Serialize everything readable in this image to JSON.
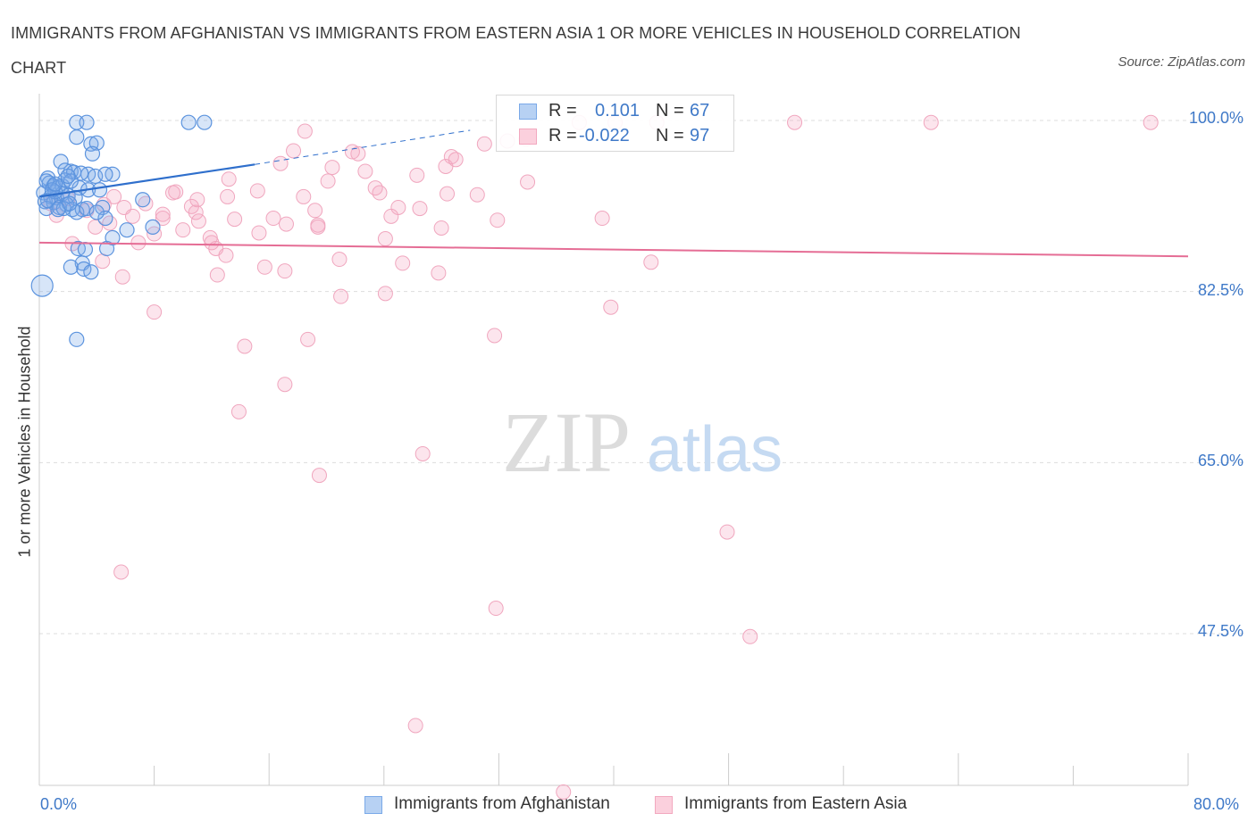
{
  "title": "IMMIGRANTS FROM AFGHANISTAN VS IMMIGRANTS FROM EASTERN ASIA 1 OR MORE VEHICLES IN HOUSEHOLD CORRELATION CHART",
  "source": "Source: ZipAtlas.com",
  "watermark": {
    "zip": "ZIP",
    "atlas": "atlas"
  },
  "legend_stats": [
    {
      "r_label": "R =",
      "r_value": "0.101",
      "n_label": "N =",
      "n_value": "67",
      "color": "#7aa9e8"
    },
    {
      "r_label": "R =",
      "r_value": "-0.022",
      "n_label": "N =",
      "n_value": "97",
      "color": "#f2a8bf"
    }
  ],
  "legend": [
    {
      "label": "Immigrants from Afghanistan",
      "color": "#7aa9e8"
    },
    {
      "label": "Immigrants from Eastern Asia",
      "color": "#f2a8bf"
    }
  ],
  "chart_data": {
    "type": "scatter",
    "title": "IMMIGRANTS FROM AFGHANISTAN VS IMMIGRANTS FROM EASTERN ASIA 1 OR MORE VEHICLES IN HOUSEHOLD CORRELATION CHART",
    "xlabel": "",
    "ylabel": "1 or more Vehicles in Household",
    "xlim": [
      0,
      80
    ],
    "ylim": [
      32,
      103
    ],
    "x_tick_labels": [
      "0.0%",
      "80.0%"
    ],
    "y_ticks": [
      47.5,
      65.0,
      82.5,
      100.0
    ],
    "y_tick_labels": [
      "47.5%",
      "65.0%",
      "82.5%",
      "100.0%"
    ],
    "grid": "horizontal dashed",
    "series": [
      {
        "name": "Immigrants from Afghanistan",
        "color": "#5b93de",
        "trend": {
          "x": [
            0,
            15
          ],
          "y": [
            92.2,
            95.5
          ],
          "extended_to": [
            30,
            99.0
          ]
        },
        "points": [
          [
            2.6,
            99.8
          ],
          [
            2.6,
            98.3
          ],
          [
            3.3,
            99.8
          ],
          [
            10.4,
            99.8
          ],
          [
            11.5,
            99.8
          ],
          [
            3.6,
            97.6
          ],
          [
            4.0,
            97.7
          ],
          [
            3.7,
            96.6
          ],
          [
            1.5,
            95.8
          ],
          [
            2.2,
            94.8
          ],
          [
            1.8,
            94.9
          ],
          [
            2.4,
            94.7
          ],
          [
            3.4,
            94.5
          ],
          [
            3.9,
            94.3
          ],
          [
            5.1,
            94.5
          ],
          [
            0.6,
            94.1
          ],
          [
            0.7,
            93.6
          ],
          [
            1.0,
            93.3
          ],
          [
            1.3,
            93.1
          ],
          [
            1.6,
            93.3
          ],
          [
            2.8,
            93.1
          ],
          [
            3.4,
            92.9
          ],
          [
            4.2,
            92.9
          ],
          [
            0.3,
            92.6
          ],
          [
            0.8,
            92.2
          ],
          [
            1.2,
            92.1
          ],
          [
            1.6,
            92.5
          ],
          [
            2.0,
            92.3
          ],
          [
            2.5,
            92.1
          ],
          [
            0.4,
            91.7
          ],
          [
            1.0,
            91.6
          ],
          [
            1.9,
            91.4
          ],
          [
            0.5,
            91.0
          ],
          [
            1.4,
            91.1
          ],
          [
            2.3,
            90.9
          ],
          [
            3.0,
            90.9
          ],
          [
            4.4,
            91.1
          ],
          [
            2.6,
            90.6
          ],
          [
            4.6,
            90.0
          ],
          [
            7.2,
            91.9
          ],
          [
            7.9,
            89.1
          ],
          [
            6.1,
            88.8
          ],
          [
            4.7,
            86.9
          ],
          [
            2.7,
            86.9
          ],
          [
            3.2,
            86.8
          ],
          [
            3.0,
            85.4
          ],
          [
            2.2,
            85.0
          ],
          [
            3.1,
            84.8
          ],
          [
            3.6,
            84.5
          ],
          [
            0.2,
            83.1
          ],
          [
            2.6,
            77.6
          ],
          [
            0.5,
            93.8
          ],
          [
            1.1,
            92.7
          ],
          [
            1.8,
            93.9
          ],
          [
            2.9,
            94.6
          ],
          [
            4.6,
            94.5
          ],
          [
            0.9,
            92.9
          ],
          [
            1.7,
            91.0
          ],
          [
            3.3,
            91.0
          ],
          [
            5.1,
            88.0
          ],
          [
            1.1,
            93.5
          ],
          [
            2.2,
            93.8
          ],
          [
            2.0,
            94.3
          ],
          [
            0.6,
            91.8
          ],
          [
            1.3,
            90.9
          ],
          [
            4.0,
            90.6
          ],
          [
            2.1,
            91.5
          ]
        ]
      },
      {
        "name": "Immigrants from Eastern Asia",
        "color": "#ef8aa8",
        "trend": {
          "x": [
            0,
            80
          ],
          "y": [
            87.5,
            86.1
          ]
        },
        "points": [
          [
            37.6,
            99.8
          ],
          [
            40.1,
            99.8
          ],
          [
            43.0,
            99.8
          ],
          [
            52.6,
            99.8
          ],
          [
            62.1,
            99.8
          ],
          [
            77.4,
            99.8
          ],
          [
            18.5,
            98.9
          ],
          [
            33.9,
            98.1
          ],
          [
            31.0,
            97.6
          ],
          [
            17.7,
            96.9
          ],
          [
            22.2,
            96.6
          ],
          [
            28.7,
            96.3
          ],
          [
            16.8,
            95.6
          ],
          [
            28.3,
            95.3
          ],
          [
            20.4,
            95.2
          ],
          [
            22.7,
            94.8
          ],
          [
            26.3,
            94.4
          ],
          [
            13.2,
            94.0
          ],
          [
            20.1,
            93.8
          ],
          [
            34.0,
            93.7
          ],
          [
            23.4,
            93.1
          ],
          [
            15.2,
            92.8
          ],
          [
            23.7,
            92.6
          ],
          [
            28.4,
            92.5
          ],
          [
            13.1,
            92.2
          ],
          [
            18.4,
            92.2
          ],
          [
            9.5,
            92.7
          ],
          [
            7.4,
            91.5
          ],
          [
            10.6,
            91.2
          ],
          [
            25.0,
            91.1
          ],
          [
            4.5,
            91.4
          ],
          [
            5.9,
            91.1
          ],
          [
            10.9,
            90.6
          ],
          [
            19.2,
            90.8
          ],
          [
            24.5,
            90.2
          ],
          [
            6.5,
            90.2
          ],
          [
            8.6,
            90.0
          ],
          [
            16.3,
            90.0
          ],
          [
            11.1,
            89.7
          ],
          [
            17.2,
            89.4
          ],
          [
            19.4,
            89.3
          ],
          [
            28.0,
            89.0
          ],
          [
            3.9,
            89.1
          ],
          [
            10.0,
            88.8
          ],
          [
            8.0,
            88.4
          ],
          [
            11.9,
            88.0
          ],
          [
            12.0,
            87.5
          ],
          [
            2.3,
            87.4
          ],
          [
            6.9,
            87.5
          ],
          [
            12.3,
            86.9
          ],
          [
            13.0,
            86.2
          ],
          [
            4.4,
            85.6
          ],
          [
            20.9,
            85.8
          ],
          [
            25.3,
            85.4
          ],
          [
            15.7,
            85.0
          ],
          [
            17.1,
            84.6
          ],
          [
            12.4,
            84.2
          ],
          [
            5.8,
            84.0
          ],
          [
            27.8,
            84.4
          ],
          [
            42.6,
            85.5
          ],
          [
            21.0,
            82.0
          ],
          [
            24.1,
            82.3
          ],
          [
            39.8,
            80.9
          ],
          [
            8.0,
            80.4
          ],
          [
            18.7,
            77.6
          ],
          [
            14.3,
            76.9
          ],
          [
            31.7,
            78.0
          ],
          [
            17.1,
            73.0
          ],
          [
            13.9,
            70.2
          ],
          [
            26.7,
            65.9
          ],
          [
            19.5,
            63.7
          ],
          [
            47.9,
            57.9
          ],
          [
            5.7,
            53.8
          ],
          [
            31.8,
            50.1
          ],
          [
            49.5,
            47.2
          ],
          [
            26.2,
            38.1
          ],
          [
            36.5,
            31.3
          ],
          [
            1.2,
            90.3
          ],
          [
            0.8,
            91.5
          ],
          [
            2.0,
            92.0
          ],
          [
            3.3,
            90.8
          ],
          [
            5.2,
            92.2
          ],
          [
            30.5,
            92.4
          ],
          [
            29.0,
            96.0
          ],
          [
            32.6,
            97.9
          ],
          [
            11.0,
            91.9
          ],
          [
            4.9,
            89.5
          ],
          [
            21.8,
            96.8
          ],
          [
            9.3,
            92.6
          ],
          [
            15.3,
            88.5
          ],
          [
            8.6,
            90.4
          ],
          [
            26.5,
            91.0
          ],
          [
            13.6,
            89.9
          ],
          [
            39.2,
            90.0
          ],
          [
            19.4,
            89.1
          ],
          [
            24.1,
            87.9
          ],
          [
            31.9,
            89.8
          ]
        ]
      }
    ]
  }
}
